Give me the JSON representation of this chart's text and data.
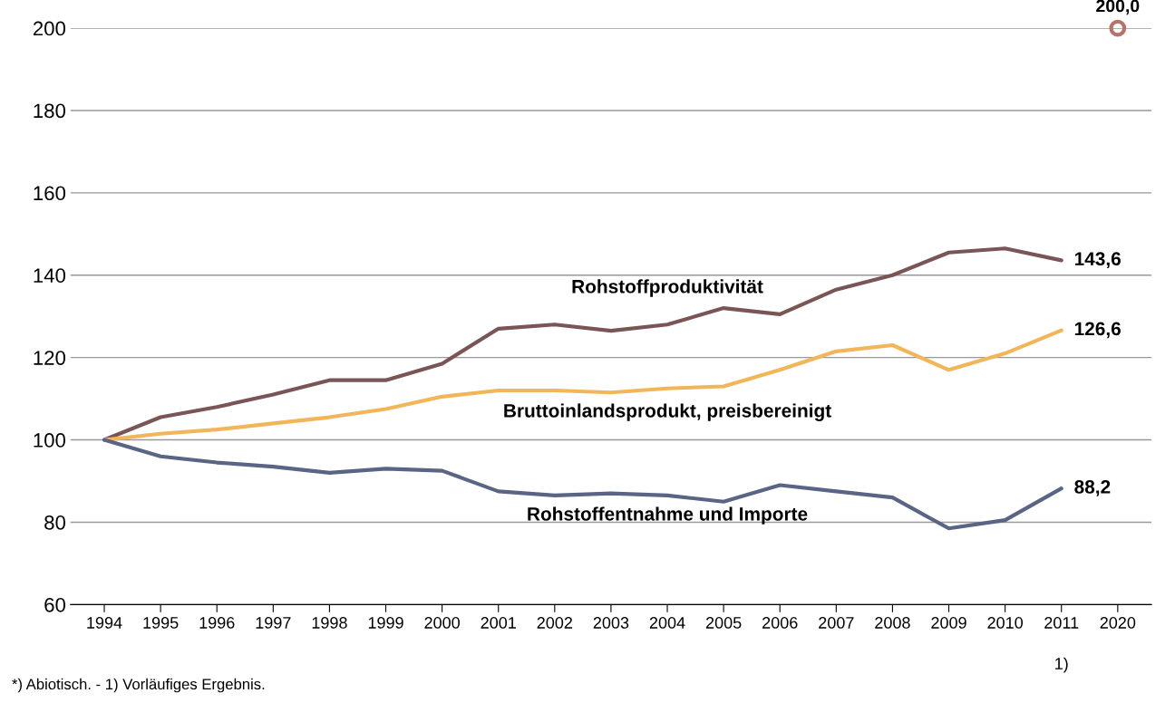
{
  "chart_data": {
    "type": "line",
    "categories": [
      "1994",
      "1995",
      "1996",
      "1997",
      "1998",
      "1999",
      "2000",
      "2001",
      "2002",
      "2003",
      "2004",
      "2005",
      "2006",
      "2007",
      "2008",
      "2009",
      "2010",
      "2011",
      "2020"
    ],
    "series": [
      {
        "name": "Rohstoffproduktivität",
        "color": "#7a5556",
        "values": [
          100,
          105.5,
          108,
          111,
          114.5,
          114.5,
          118.5,
          127,
          128,
          126.5,
          128,
          132,
          130.5,
          136.5,
          140,
          145.5,
          146.5,
          143.6,
          null
        ],
        "value_labels": [
          null,
          null,
          null,
          null,
          null,
          null,
          null,
          null,
          null,
          null,
          null,
          null,
          null,
          null,
          null,
          null,
          null,
          "143,6",
          null
        ]
      },
      {
        "name": "Bruttoinlandsprodukt, preisbereinigt",
        "color": "#f2b65a",
        "values": [
          100,
          101.5,
          102.5,
          104,
          105.5,
          107.5,
          110.5,
          112,
          112,
          111.5,
          112.5,
          113,
          117,
          121.5,
          123,
          117,
          121,
          126.6,
          null
        ],
        "value_labels": [
          null,
          null,
          null,
          null,
          null,
          null,
          null,
          null,
          null,
          null,
          null,
          null,
          null,
          null,
          null,
          null,
          null,
          "126,6",
          null
        ]
      },
      {
        "name": "Rohstoffentnahme und Importe",
        "color": "#5a6484",
        "values": [
          100,
          96,
          94.5,
          93.5,
          92,
          93,
          92.5,
          87.5,
          86.5,
          87,
          86.5,
          85,
          89,
          87.5,
          86,
          78.5,
          80.5,
          88.2,
          null
        ],
        "value_labels": [
          null,
          null,
          null,
          null,
          null,
          null,
          null,
          null,
          null,
          null,
          null,
          null,
          null,
          null,
          null,
          null,
          null,
          "88,2",
          null
        ]
      },
      {
        "type": "scatter",
        "marker": "circle",
        "color": "#b5736a",
        "values": [
          null,
          null,
          null,
          null,
          null,
          null,
          null,
          null,
          null,
          null,
          null,
          null,
          null,
          null,
          null,
          null,
          null,
          null,
          200
        ],
        "value_labels": [
          null,
          null,
          null,
          null,
          null,
          null,
          null,
          null,
          null,
          null,
          null,
          null,
          null,
          null,
          null,
          null,
          null,
          null,
          "200,0"
        ]
      }
    ],
    "ylim": [
      60,
      200
    ],
    "yticks": [
      60,
      80,
      100,
      120,
      140,
      160,
      180,
      200
    ],
    "grid": "y",
    "annotations": [
      "1)",
      "*) Abiotisch. - 1) Vorläufiges Ergebnis."
    ]
  }
}
